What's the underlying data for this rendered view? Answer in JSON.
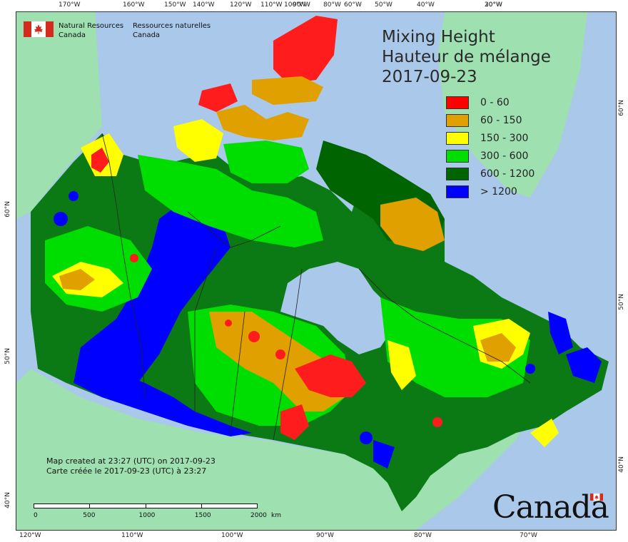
{
  "map": {
    "title_en": "Mixing Height",
    "title_fr": "Hauteur de mélange",
    "date": "2017-09-23"
  },
  "agency": {
    "name_en_line1": "Natural Resources",
    "name_en_line2": "Canada",
    "name_fr_line1": "Ressources naturelles",
    "name_fr_line2": "Canada"
  },
  "legend": [
    {
      "label": "0 - 60",
      "color": "#ff0000"
    },
    {
      "label": "60 - 150",
      "color": "#e0a000"
    },
    {
      "label": "150 - 300",
      "color": "#ffff00"
    },
    {
      "label": "300 - 600",
      "color": "#00dd00"
    },
    {
      "label": "600 - 1200",
      "color": "#006400"
    },
    {
      "label": "> 1200",
      "color": "#0000ff"
    }
  ],
  "footer": {
    "line_en": "Map created at 23:27 (UTC) on 2017-09-23",
    "line_fr": "Carte créée le 2017-09-23 (UTC) à 23:27"
  },
  "scale": {
    "ticks": [
      "0",
      "500",
      "1000",
      "1500",
      "2000"
    ],
    "unit": "km"
  },
  "wordmark": "Canada",
  "graticule": {
    "top": [
      "170°W",
      "160°W",
      "150°W",
      "140°W",
      "120°W",
      "110°W",
      "100°W",
      "90°W",
      "80°W",
      "60°W",
      "50°W",
      "40°W",
      "30°W",
      "20°W"
    ],
    "bottom": [
      "120°W",
      "110°W",
      "100°W",
      "90°W",
      "80°W",
      "70°W"
    ],
    "left": [
      "60°N",
      "50°N",
      "40°N"
    ],
    "right": [
      "60°N",
      "50°N",
      "40°N"
    ]
  },
  "colors": {
    "ocean": "#a9c8ea",
    "land_outside": "#9ee0b0",
    "accent_red": "#d52b1e"
  }
}
